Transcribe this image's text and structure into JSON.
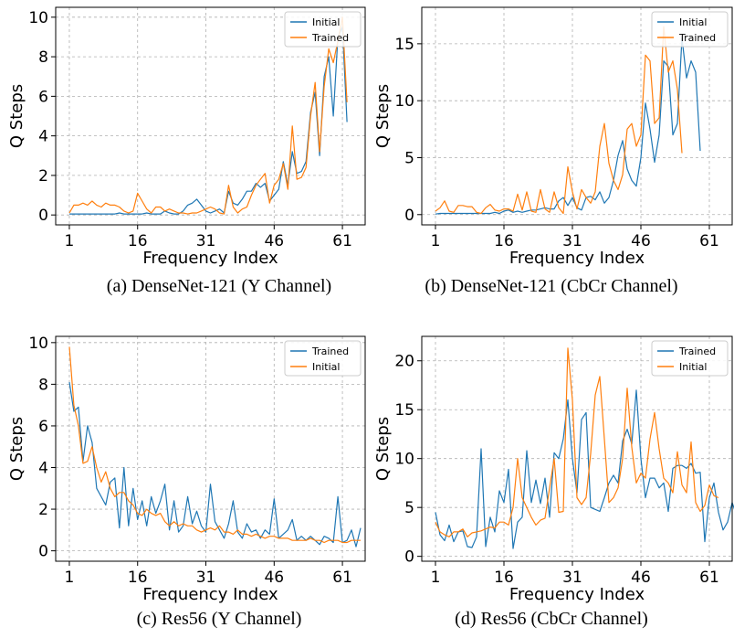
{
  "colors": {
    "blue": "#1f77b4",
    "orange": "#ff7f0e",
    "grid": "#b0b0b0"
  },
  "captions": [
    "(a) DenseNet-121 (Y Channel)",
    "(b) DenseNet-121 (CbCr Channel)",
    "(c) Res56 (Y Channel)",
    "(d) Res56 (CbCr Channel)"
  ],
  "chart_data": [
    {
      "type": "line",
      "xlabel": "Frequency Index",
      "ylabel": "Q Steps",
      "xlim": [
        -2,
        66
      ],
      "ylim": [
        -0.5,
        10.5
      ],
      "xticks": [
        1,
        16,
        31,
        46,
        61
      ],
      "yticks": [
        0,
        2,
        4,
        6,
        8,
        10
      ],
      "grid": true,
      "legend_position": "top-right",
      "series": [
        {
          "name": "Initial",
          "color": "#1f77b4",
          "values": [
            0.05,
            0.05,
            0.05,
            0.05,
            0.05,
            0.05,
            0.05,
            0.05,
            0.05,
            0.05,
            0.05,
            0.1,
            0.05,
            0.05,
            0.05,
            0.05,
            0.05,
            0.1,
            0.05,
            0.05,
            0.05,
            0.2,
            0.1,
            0.05,
            0.05,
            0.2,
            0.5,
            0.6,
            0.8,
            0.5,
            0.2,
            0.1,
            0.2,
            0.3,
            0.1,
            1.2,
            0.6,
            0.5,
            0.8,
            1.2,
            1.2,
            1.6,
            1.4,
            1.6,
            0.7,
            1.0,
            1.3,
            2.7,
            1.5,
            3.2,
            2.1,
            2.2,
            2.7,
            5.2,
            6.2,
            3.0,
            7.0,
            8.0,
            5.0,
            9.0,
            9.5,
            4.7
          ]
        },
        {
          "name": "Trained",
          "color": "#ff7f0e",
          "values": [
            0.1,
            0.5,
            0.5,
            0.6,
            0.5,
            0.7,
            0.5,
            0.4,
            0.6,
            0.5,
            0.5,
            0.4,
            0.2,
            0.1,
            0.2,
            1.1,
            0.7,
            0.3,
            0.1,
            0.4,
            0.4,
            0.2,
            0.3,
            0.2,
            0.1,
            0.1,
            0.05,
            0.1,
            0.1,
            0.2,
            0.3,
            0.4,
            0.3,
            0.1,
            0.05,
            1.5,
            0.4,
            0.1,
            0.3,
            0.4,
            1.0,
            1.5,
            1.8,
            2.1,
            0.6,
            1.5,
            1.8,
            2.6,
            1.3,
            4.5,
            1.8,
            1.9,
            2.4,
            5.0,
            6.7,
            3.2,
            6.5,
            8.4,
            7.7,
            8.8,
            10.0,
            5.7
          ]
        }
      ]
    },
    {
      "type": "line",
      "xlabel": "Frequency Index",
      "ylabel": "Q Steps",
      "xlim": [
        -2,
        66
      ],
      "ylim": [
        -0.9,
        18.2
      ],
      "xticks": [
        1,
        16,
        31,
        46,
        61
      ],
      "yticks": [
        0,
        5,
        10,
        15
      ],
      "grid": true,
      "legend_position": "top-right",
      "series": [
        {
          "name": "Initial",
          "color": "#1f77b4",
          "values": [
            0.05,
            0.1,
            0.1,
            0.1,
            0.1,
            0.1,
            0.1,
            0.1,
            0.1,
            0.1,
            0.1,
            0.1,
            0.1,
            0.2,
            0.1,
            0.3,
            0.4,
            0.2,
            0.3,
            0.2,
            0.3,
            0.4,
            0.4,
            0.5,
            0.6,
            0.5,
            0.5,
            1.2,
            1.5,
            0.8,
            1.5,
            0.6,
            0.4,
            1.5,
            1.6,
            1.3,
            2.0,
            1.0,
            1.5,
            3.0,
            5.2,
            6.5,
            4.0,
            3.0,
            2.5,
            5.0,
            9.8,
            7.5,
            4.6,
            7.0,
            13.5,
            13.0,
            7.0,
            8.0,
            15.5,
            12.0,
            13.5,
            12.5,
            5.6
          ]
        },
        {
          "name": "Trained",
          "color": "#ff7f0e",
          "values": [
            0.3,
            0.6,
            1.2,
            0.3,
            0.2,
            0.8,
            0.8,
            0.7,
            0.7,
            0.2,
            0.1,
            0.6,
            0.9,
            0.4,
            0.3,
            0.5,
            0.5,
            0.3,
            1.8,
            0.4,
            2.0,
            0.3,
            0.2,
            2.2,
            0.5,
            0.2,
            2.0,
            0.6,
            0.1,
            4.2,
            2.0,
            0.5,
            2.2,
            1.5,
            1.0,
            2.0,
            6.0,
            8.0,
            4.5,
            3.0,
            2.2,
            3.5,
            7.5,
            8.0,
            6.0,
            7.0,
            14.0,
            13.5,
            8.0,
            8.5,
            16.5,
            12.5,
            13.5,
            11.0,
            5.4
          ]
        }
      ]
    },
    {
      "type": "line",
      "xlabel": "Frequency Index",
      "ylabel": "Q Steps",
      "xlim": [
        -2,
        66
      ],
      "ylim": [
        -0.5,
        10.3
      ],
      "xticks": [
        1,
        16,
        31,
        46,
        61
      ],
      "yticks": [
        0,
        2,
        4,
        6,
        8,
        10
      ],
      "grid": true,
      "legend_position": "top-right",
      "series": [
        {
          "name": "Trained",
          "color": "#1f77b4",
          "values": [
            8.1,
            6.7,
            6.9,
            4.3,
            6.0,
            5.2,
            3.0,
            2.6,
            2.2,
            3.3,
            3.5,
            1.1,
            4.0,
            1.2,
            3.0,
            1.5,
            2.4,
            1.2,
            2.6,
            1.8,
            2.4,
            3.2,
            1.0,
            2.4,
            0.9,
            1.2,
            2.6,
            1.3,
            1.9,
            1.2,
            0.9,
            3.2,
            1.4,
            1.0,
            0.6,
            1.3,
            2.4,
            0.9,
            0.6,
            1.3,
            0.9,
            1.0,
            0.6,
            1.0,
            0.8,
            2.5,
            0.6,
            0.8,
            1.0,
            1.5,
            0.5,
            0.7,
            0.5,
            0.7,
            0.5,
            0.3,
            0.7,
            0.6,
            0.4,
            2.6,
            0.4,
            0.5,
            1.0,
            0.2,
            1.1
          ]
        },
        {
          "name": "Initial",
          "color": "#ff7f0e",
          "values": [
            9.8,
            7.0,
            6.0,
            4.2,
            4.3,
            5.0,
            4.0,
            3.3,
            3.8,
            3.0,
            2.6,
            2.8,
            2.8,
            2.4,
            2.2,
            1.8,
            1.7,
            2.0,
            1.8,
            1.7,
            1.8,
            1.4,
            1.2,
            1.4,
            1.2,
            1.3,
            1.2,
            1.2,
            1.0,
            0.9,
            1.0,
            1.1,
            1.0,
            1.2,
            0.9,
            0.9,
            0.8,
            1.0,
            0.8,
            0.8,
            0.7,
            0.8,
            0.7,
            0.6,
            0.7,
            0.7,
            0.6,
            0.6,
            0.6,
            0.5,
            0.5,
            0.5,
            0.5,
            0.6,
            0.5,
            0.5,
            0.4,
            0.5,
            0.5,
            0.5,
            0.4,
            0.4,
            0.5,
            0.5,
            0.5
          ]
        }
      ]
    },
    {
      "type": "line",
      "xlabel": "Frequency Index",
      "ylabel": "Q Steps",
      "xlim": [
        -2,
        66
      ],
      "ylim": [
        -0.5,
        22.5
      ],
      "xticks": [
        1,
        16,
        31,
        46,
        61
      ],
      "yticks": [
        0,
        5,
        10,
        15,
        20
      ],
      "grid": true,
      "legend_position": "top-right",
      "series": [
        {
          "name": "Trained",
          "color": "#1f77b4",
          "values": [
            4.5,
            2.2,
            1.6,
            3.2,
            1.5,
            2.5,
            2.6,
            1.0,
            0.9,
            2.0,
            11.0,
            1.0,
            4.0,
            2.5,
            6.7,
            5.5,
            8.9,
            0.8,
            3.5,
            4.0,
            10.8,
            5.5,
            7.8,
            5.4,
            8.0,
            4.0,
            10.6,
            10.0,
            12.0,
            16.0,
            10.0,
            6.5,
            14.0,
            14.7,
            5.0,
            4.8,
            4.6,
            6.0,
            7.5,
            8.3,
            7.5,
            11.8,
            13.0,
            11.5,
            17.0,
            10.0,
            6.0,
            8.0,
            8.0,
            7.0,
            7.5,
            4.6,
            9.0,
            9.3,
            9.3,
            9.0,
            9.5,
            8.5,
            8.6,
            1.5,
            6.0,
            7.5,
            4.5,
            2.7,
            3.5,
            5.5,
            4.1
          ]
        },
        {
          "name": "Initial",
          "color": "#ff7f0e",
          "values": [
            3.5,
            2.5,
            2.2,
            2.0,
            2.5,
            2.5,
            2.8,
            2.0,
            2.4,
            2.5,
            2.6,
            2.8,
            3.0,
            2.9,
            3.5,
            3.5,
            3.2,
            5.0,
            10.0,
            6.0,
            5.0,
            4.0,
            3.2,
            3.7,
            3.9,
            7.0,
            10.0,
            4.5,
            4.6,
            21.3,
            16.0,
            6.0,
            5.3,
            6.0,
            10.5,
            16.5,
            18.4,
            12.0,
            5.5,
            6.0,
            7.0,
            10.0,
            17.2,
            11.2,
            7.5,
            8.5,
            8.0,
            12.0,
            14.7,
            11.0,
            8.0,
            7.5,
            6.5,
            10.7,
            7.3,
            6.5,
            11.7,
            5.5,
            4.6,
            5.2,
            7.3,
            6.2,
            6.0
          ]
        }
      ]
    }
  ]
}
